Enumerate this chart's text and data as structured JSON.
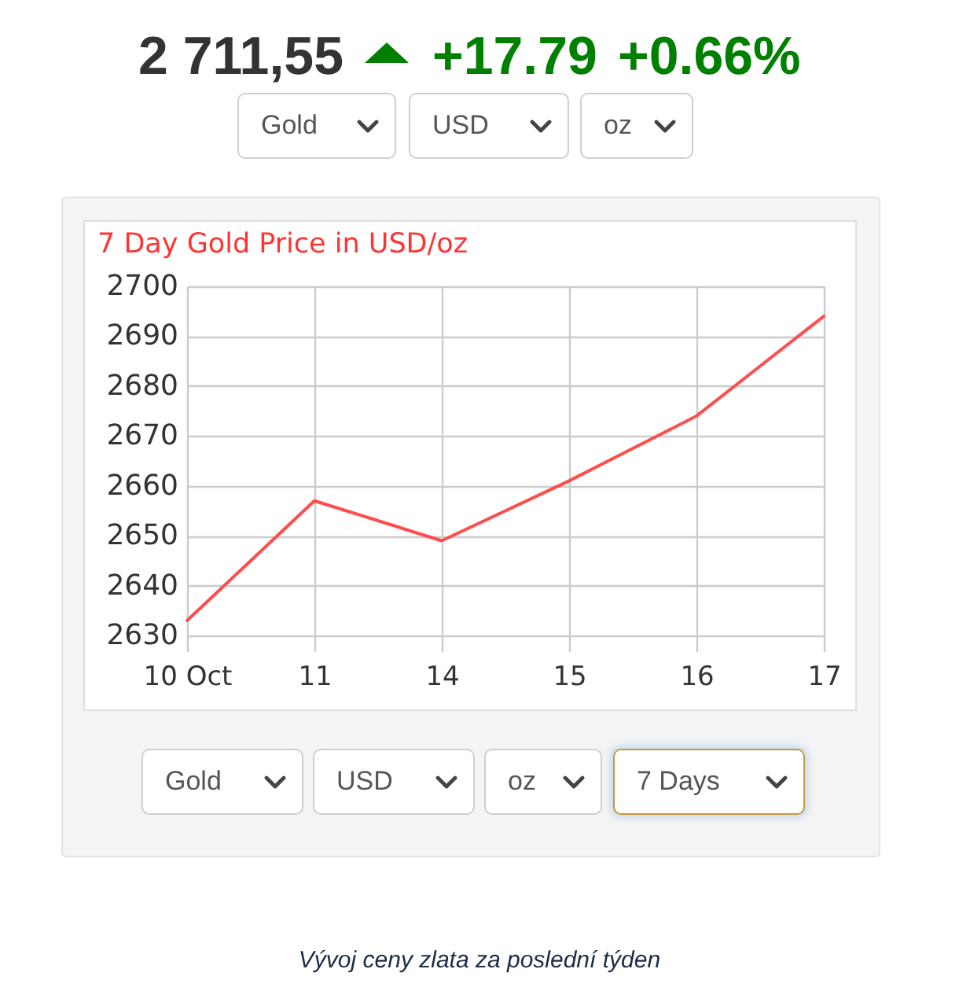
{
  "chart_data": {
    "type": "line",
    "title": "7 Day Gold Price in USD/oz",
    "categories": [
      "10 Oct",
      "11",
      "14",
      "15",
      "16",
      "17"
    ],
    "series": [
      {
        "color": "#ff4d4d",
        "values": [
          2633,
          2657,
          2649,
          2661,
          2674,
          2694
        ]
      }
    ],
    "ylim": [
      2630,
      2700
    ],
    "yticks": [
      2630,
      2640,
      2650,
      2660,
      2670,
      2680,
      2690,
      2700
    ],
    "grid": true,
    "annotations": [
      "2 711,55",
      "+17.79",
      "+0.66%",
      "Gold",
      "USD",
      "oz",
      "Gold",
      "USD",
      "oz",
      "7 Days",
      "Vývoj ceny zlata za poslední týden"
    ]
  }
}
